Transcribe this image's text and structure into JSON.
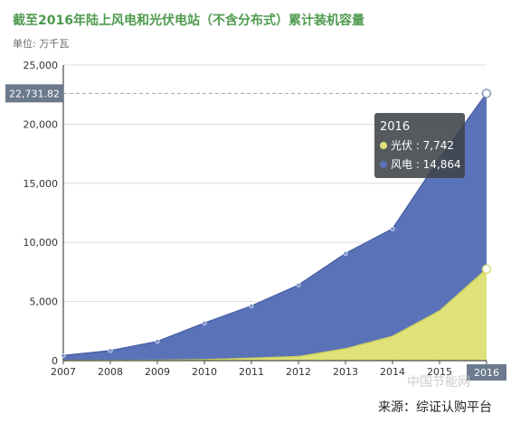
{
  "title": "截至2016年陆上风电和光伏电站（不含分布式）累计装机容量",
  "unit": "单位: 万千瓦",
  "source": "来源：综证认购平台",
  "watermark": "中国节能网",
  "colors": {
    "wind": "#5a73b8",
    "solar": "#dfe278",
    "axis": "#4a4a4a",
    "grid": "#dcdcdc",
    "label_bg": "#6b7a8c",
    "tooltip_bg": "#3f4348",
    "title": "#4e9a4e"
  },
  "chart_data": {
    "type": "area",
    "stacked": true,
    "categories": [
      "2007",
      "2008",
      "2009",
      "2010",
      "2011",
      "2012",
      "2013",
      "2014",
      "2015",
      "2016"
    ],
    "series": [
      {
        "name": "光伏",
        "values": [
          10,
          15,
          30,
          80,
          200,
          340,
          1000,
          2050,
          4200,
          7742
        ]
      },
      {
        "name": "风电",
        "values": [
          420,
          830,
          1590,
          3100,
          4420,
          6050,
          8060,
          9100,
          12900,
          14864
        ]
      }
    ],
    "ylim": [
      0,
      25000
    ],
    "yticks": [
      "0",
      "5,000",
      "10,000",
      "15,000",
      "20,000",
      "25,000"
    ],
    "grid": true,
    "crosshair_label": "22,731.82",
    "tooltip": {
      "title": "2016",
      "items": [
        {
          "label": "光伏 : 7,742",
          "color": "#dfe278"
        },
        {
          "label": "风电 : 14,864",
          "color": "#5a73b8"
        }
      ]
    }
  }
}
